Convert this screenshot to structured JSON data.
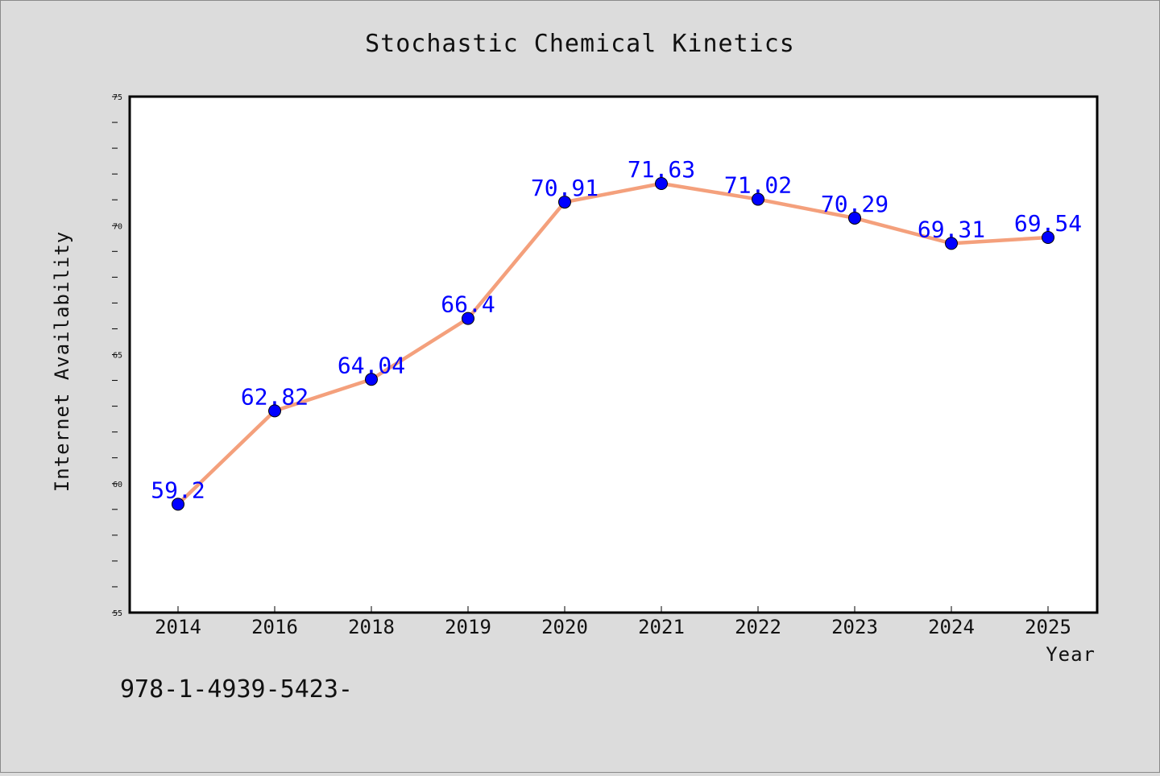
{
  "chart_data": {
    "type": "line",
    "title": "Stochastic Chemical Kinetics",
    "xlabel": "Year",
    "ylabel": "Internet Availability",
    "categories": [
      "2014",
      "2016",
      "2018",
      "2019",
      "2020",
      "2021",
      "2022",
      "2023",
      "2024",
      "2025"
    ],
    "series": [
      {
        "values": [
          59.2,
          62.82,
          64.04,
          66.4,
          70.91,
          71.63,
          71.02,
          70.29,
          69.31,
          69.54
        ],
        "labels": [
          "59.2",
          "62.82",
          "64.04",
          "66.4",
          "70.91",
          "71.63",
          "71.02",
          "70.29",
          "69.31",
          "69.54"
        ],
        "line_color": "#f4a07c",
        "marker_color": "#0000ff"
      }
    ],
    "ylim": [
      55,
      75
    ],
    "yticks": [
      "55",
      "60",
      "65",
      "70",
      "75"
    ],
    "grid": false,
    "legend": "none"
  },
  "footer": {
    "text": "978-1-4939-5423-"
  },
  "colors": {
    "background": "#dcdcdc",
    "plot_area": "#ffffff",
    "line": "#f4a07c",
    "marker": "#0000ff",
    "data_label": "#0000ff"
  }
}
